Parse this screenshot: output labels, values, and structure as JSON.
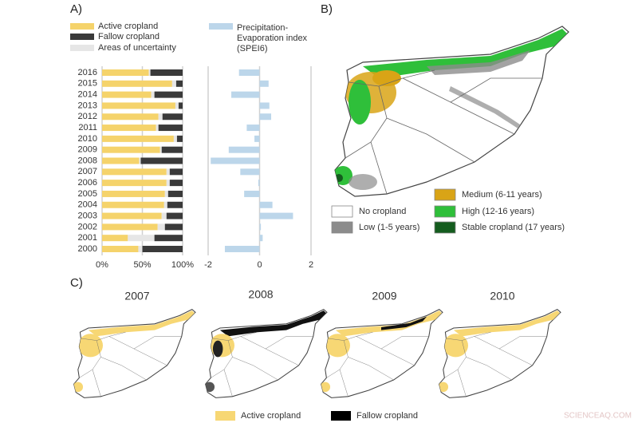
{
  "panel_labels": [
    "A)",
    "B)",
    "C)"
  ],
  "chart_data": [
    {
      "type": "bar",
      "orientation": "horizontal",
      "stacked": true,
      "categories": [
        "2000",
        "2001",
        "2002",
        "2003",
        "2004",
        "2005",
        "2006",
        "2007",
        "2008",
        "2009",
        "2010",
        "2011",
        "2012",
        "2013",
        "2014",
        "2015",
        "2016"
      ],
      "series": [
        {
          "name": "Active cropland",
          "color": "#f5d36b",
          "values": [
            45,
            32,
            69,
            74,
            77,
            78,
            80,
            80,
            46,
            72,
            89,
            67,
            70,
            91,
            61,
            87,
            58
          ]
        },
        {
          "name": "Areas of uncertainty",
          "color": "#e6e6e6",
          "values": [
            5,
            33,
            9,
            6,
            4,
            4,
            4,
            4,
            2,
            2,
            4,
            3,
            5,
            4,
            4,
            5,
            2
          ]
        },
        {
          "name": "Fallow cropland",
          "color": "#3a3a3a",
          "values": [
            50,
            35,
            22,
            20,
            19,
            18,
            16,
            16,
            52,
            26,
            7,
            30,
            25,
            5,
            35,
            8,
            40
          ]
        }
      ],
      "xlim": [
        0,
        100
      ],
      "xticks": [
        {
          "value": 0,
          "label": "0%"
        },
        {
          "value": 50,
          "label": "50%"
        },
        {
          "value": 100,
          "label": "100%"
        }
      ],
      "grid": true
    },
    {
      "type": "bar",
      "orientation": "horizontal",
      "series": [
        {
          "name": "Precipitation-Evaporation index (SPEI6)",
          "color": "#bcd6ea",
          "values": [
            -1.35,
            0.12,
            0.05,
            1.3,
            0.5,
            -0.6,
            -0.05,
            -0.75,
            -1.9,
            -1.2,
            -0.2,
            -0.5,
            0.45,
            0.38,
            -1.1,
            0.35,
            -0.8
          ]
        }
      ],
      "xlim": [
        -2,
        2
      ],
      "xticks": [
        -2,
        0,
        2
      ],
      "grid": true
    }
  ],
  "map_b": {
    "legend": [
      {
        "label": "No cropland",
        "color": "#ffffff"
      },
      {
        "label": "Low (1-5 years)",
        "color": "#8c8c8c"
      },
      {
        "label": "Medium (6-11 years)",
        "color": "#d9a416"
      },
      {
        "label": "High (12-16 years)",
        "color": "#2fbf3a"
      },
      {
        "label": "Stable cropland (17 years)",
        "color": "#145c1e"
      }
    ]
  },
  "map_c": {
    "years": [
      "2007",
      "2008",
      "2009",
      "2010"
    ],
    "legend": [
      {
        "label": "Active cropland",
        "color": "#f7d774"
      },
      {
        "label": "Fallow cropland",
        "color": "#000000"
      }
    ]
  },
  "watermark": "SCIENCEAQ.COM"
}
